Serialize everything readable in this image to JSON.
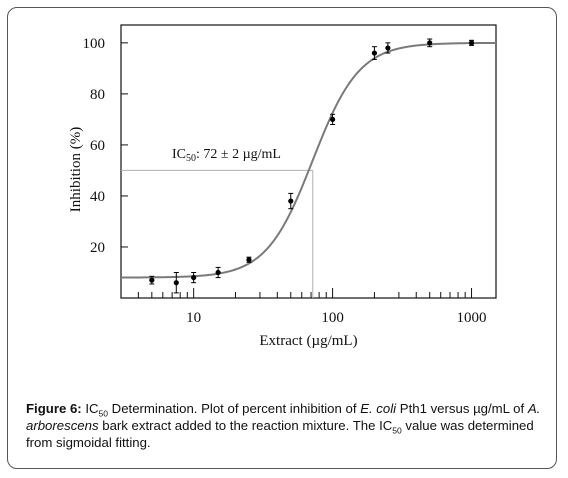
{
  "chart_data": {
    "type": "scatter",
    "x_scale": "log",
    "xlim": [
      3,
      1500
    ],
    "ylim": [
      0,
      107
    ],
    "xlabel": "Extract (µg/mL)",
    "ylabel": "Inhibition (%)",
    "x_ticks": [
      10,
      100,
      1000
    ],
    "x_tick_labels": [
      "10",
      "100",
      "1000"
    ],
    "y_ticks": [
      20,
      40,
      60,
      80,
      100
    ],
    "y_tick_labels": [
      "20",
      "40",
      "60",
      "80",
      "100"
    ],
    "grid": false,
    "points": [
      {
        "x": 5,
        "y": 7,
        "err": 1.5
      },
      {
        "x": 7.5,
        "y": 6,
        "err": 4
      },
      {
        "x": 10,
        "y": 8,
        "err": 2
      },
      {
        "x": 15,
        "y": 10,
        "err": 2
      },
      {
        "x": 25,
        "y": 15,
        "err": 1
      },
      {
        "x": 50,
        "y": 38,
        "err": 3
      },
      {
        "x": 100,
        "y": 70,
        "err": 2
      },
      {
        "x": 200,
        "y": 96,
        "err": 2.5
      },
      {
        "x": 250,
        "y": 98,
        "err": 2
      },
      {
        "x": 500,
        "y": 100,
        "err": 1.5
      },
      {
        "x": 1000,
        "y": 100,
        "err": 1
      }
    ],
    "fit": {
      "model": "sigmoidal",
      "bottom": 8,
      "top": 100,
      "ic50": 72,
      "hill": 2.6
    },
    "annotation": {
      "prefix": "IC",
      "subscript": "50",
      "text": ": 72 ± 2 µg/mL",
      "x": 72,
      "y": 50
    }
  },
  "caption": {
    "label": "Figure 6:",
    "ic": "IC",
    "ic_sub": "50",
    "p1": " Determination.  Plot of percent inhibition of ",
    "ecoli": "E. coli",
    "p2": " Pth1 versus µg/mL of ",
    "species": "A. arborescens",
    "p3": " bark extract added to the reaction mixture. The IC",
    "ic_sub2": "50",
    "p4": " value was determined from sigmoidal fitting."
  },
  "colors": {
    "fit_line": "#7a7a7a",
    "points": "#000000",
    "guide": "#b0b0b0"
  }
}
